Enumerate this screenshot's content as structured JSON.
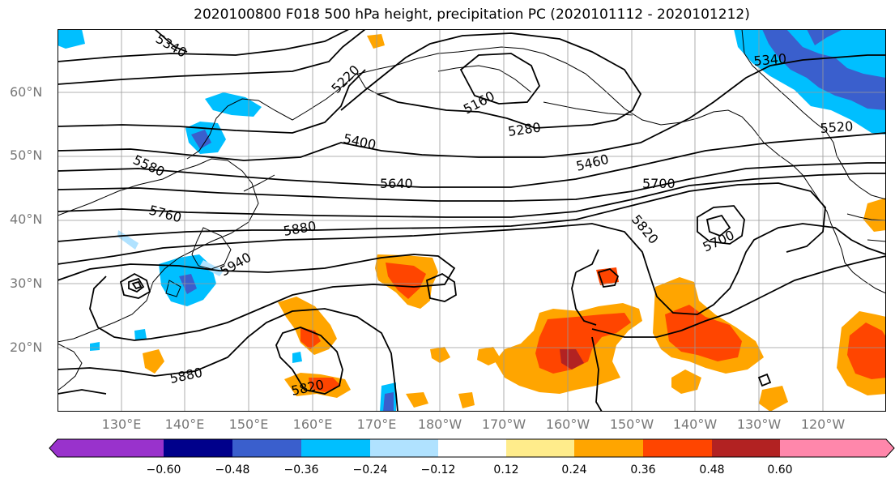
{
  "title": "2020100800 F018 500 hPa height, precipitation PC (2020101112 - 2020101212)",
  "lat_labels": [
    "60°N",
    "50°N",
    "40°N",
    "30°N",
    "20°N"
  ],
  "lon_labels": [
    "130°E",
    "140°E",
    "150°E",
    "160°E",
    "170°E",
    "180°W",
    "170°W",
    "160°W",
    "150°W",
    "140°W",
    "130°W",
    "120°W"
  ],
  "contour_labels": [
    "5340",
    "5220",
    "5160",
    "5280",
    "5400",
    "5580",
    "5460",
    "5520",
    "5340",
    "5640",
    "5700",
    "5760",
    "5880",
    "5820",
    "5700",
    "5940",
    "5880",
    "5820"
  ],
  "colorbar": {
    "ticks": [
      "−0.60",
      "−0.48",
      "−0.36",
      "−0.24",
      "−0.12",
      "0.12",
      "0.24",
      "0.36",
      "0.48",
      "0.60"
    ],
    "colors": [
      "#9932cc",
      "#00008b",
      "#3a5fcd",
      "#00bfff",
      "#b0e2ff",
      "#ffffff",
      "#ffec8b",
      "#ffa500",
      "#ff4500",
      "#b22222",
      "#ff87ab"
    ]
  },
  "colors": {
    "positive_light": "#ffec8b",
    "positive_mid": "#ffa500",
    "positive_strong": "#ff4500",
    "positive_max": "#b22222",
    "negative_light": "#00bfff",
    "negative_mid": "#3a5fcd",
    "negative_pale": "#b0e2ff"
  }
}
